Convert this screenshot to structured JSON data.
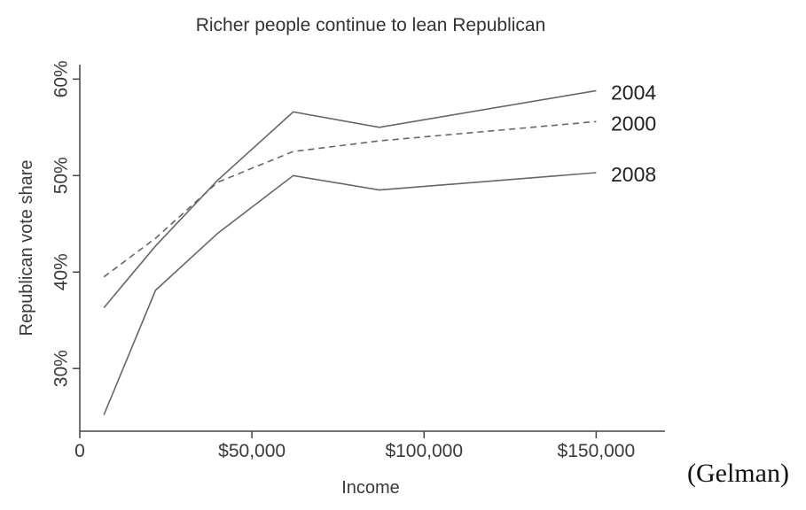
{
  "caption": "(Gelman)",
  "chart_data": {
    "type": "line",
    "title": "Richer people continue to lean Republican",
    "xlabel": "Income",
    "ylabel": "Republican vote share",
    "xlim": [
      0,
      170000
    ],
    "ylim": [
      23.5,
      61.5
    ],
    "x_ticks": [
      0,
      50000,
      100000,
      150000
    ],
    "x_tick_labels": [
      "0",
      "$50,000",
      "$100,000",
      "$150,000"
    ],
    "y_ticks": [
      30,
      40,
      50,
      60
    ],
    "y_tick_labels": [
      "30%",
      "40%",
      "50%",
      "60%"
    ],
    "grid": false,
    "legend": "direct labels at line ends",
    "series": [
      {
        "name": "2004",
        "style": "solid",
        "color": "#666666",
        "points": [
          [
            7000,
            36.3
          ],
          [
            22000,
            42.7
          ],
          [
            40000,
            49.5
          ],
          [
            62000,
            56.6
          ],
          [
            87000,
            55.0
          ],
          [
            150000,
            58.8
          ]
        ]
      },
      {
        "name": "2000",
        "style": "dashed",
        "color": "#666666",
        "points": [
          [
            7000,
            39.5
          ],
          [
            22000,
            43.5
          ],
          [
            40000,
            49.3
          ],
          [
            62000,
            52.5
          ],
          [
            87000,
            53.6
          ],
          [
            150000,
            55.6
          ]
        ]
      },
      {
        "name": "2008",
        "style": "solid",
        "color": "#666666",
        "points": [
          [
            7000,
            25.2
          ],
          [
            22000,
            38.1
          ],
          [
            40000,
            44.0
          ],
          [
            62000,
            50.0
          ],
          [
            87000,
            48.5
          ],
          [
            150000,
            50.3
          ]
        ]
      }
    ]
  }
}
